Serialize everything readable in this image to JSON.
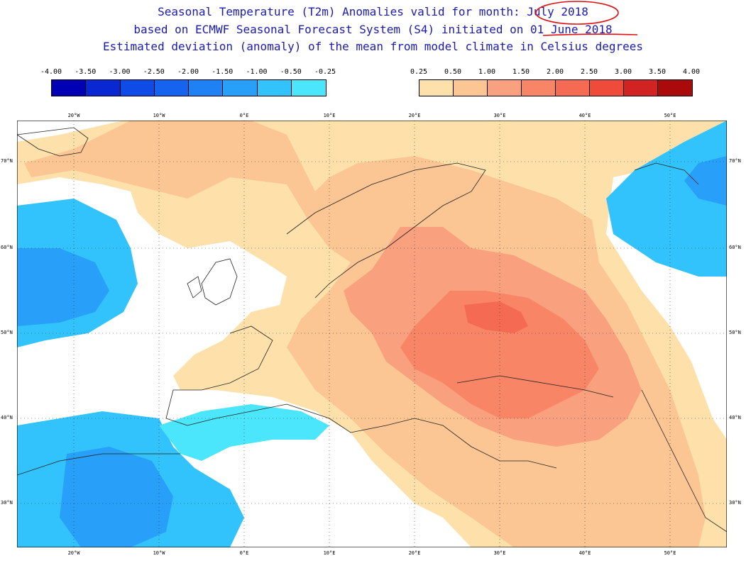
{
  "title": {
    "line1": "Seasonal Temperature (T2m) Anomalies valid for month: July 2018",
    "line2": "based on ECMWF Seasonal Forecast System (S4) initiated on 01 June 2018",
    "line3": "Estimated deviation (anomaly) of the mean from model climate in Celsius degrees"
  },
  "legend_cold": {
    "labels": [
      "-4.00",
      "-3.50",
      "-3.00",
      "-2.50",
      "-2.00",
      "-1.50",
      "-1.00",
      "-0.50",
      "-0.25"
    ],
    "colors": [
      "#0000b4",
      "#0a28d2",
      "#0f4be6",
      "#1464f0",
      "#1e82f5",
      "#28a0fa",
      "#32c3fc",
      "#4be6fc"
    ]
  },
  "legend_warm": {
    "labels": [
      "0.25",
      "0.50",
      "1.00",
      "1.50",
      "2.00",
      "2.50",
      "3.00",
      "3.50",
      "4.00"
    ],
    "colors": [
      "#fde0aa",
      "#fbc594",
      "#f9a07e",
      "#f78566",
      "#f46a52",
      "#f04a3a",
      "#d22323",
      "#aa0a0a"
    ]
  },
  "map": {
    "lon_labels": [
      "20°W",
      "10°W",
      "0°E",
      "10°E",
      "20°E",
      "30°E",
      "40°E",
      "50°E"
    ],
    "lat_labels": [
      "70°N",
      "60°N",
      "50°N",
      "40°N",
      "30°N"
    ],
    "annotation_color": "#e01010"
  }
}
